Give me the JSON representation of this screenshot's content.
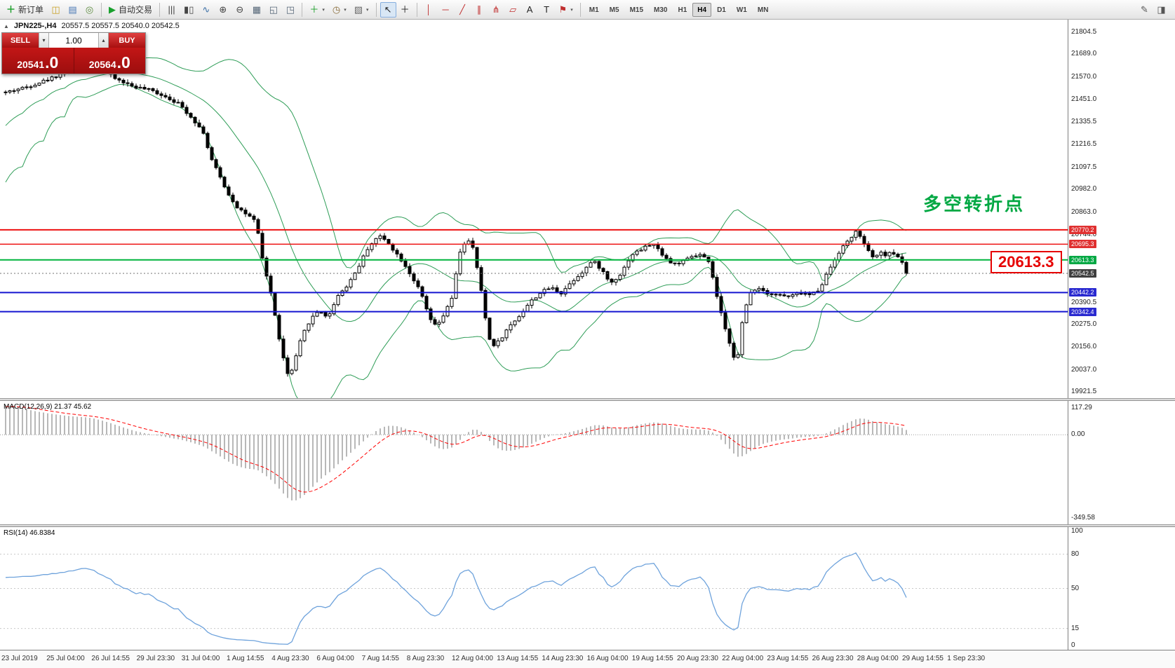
{
  "toolbar": {
    "new_order": "新订单",
    "auto_trading": "自动交易",
    "left_icons": [
      {
        "name": "market-watch-icon",
        "glyph": "◫",
        "color": "#c9a227"
      },
      {
        "name": "data-window-icon",
        "glyph": "▤",
        "color": "#4a78b5"
      },
      {
        "name": "navigator-icon",
        "glyph": "◎",
        "color": "#5b8a3c"
      }
    ],
    "chart_icons": [
      {
        "name": "bar-chart-icon",
        "glyph": "|||",
        "color": "#444444"
      },
      {
        "name": "candlestick-chart-icon",
        "glyph": "▮▯",
        "color": "#444444"
      },
      {
        "name": "line-chart-icon",
        "glyph": "∿",
        "color": "#3a6ea5"
      },
      {
        "name": "zoom-in-icon",
        "glyph": "⊕",
        "color": "#444444"
      },
      {
        "name": "zoom-out-icon",
        "glyph": "⊖",
        "color": "#444444"
      },
      {
        "name": "tile-windows-icon",
        "glyph": "▦",
        "color": "#556677"
      },
      {
        "name": "cascade-windows-icon",
        "glyph": "◱",
        "color": "#556677"
      },
      {
        "name": "arrange-windows-icon",
        "glyph": "◳",
        "color": "#556677"
      }
    ],
    "insert_icons": [
      {
        "name": "add-indicator-icon",
        "glyph": "＋",
        "color": "#1a9f29",
        "caret": true
      },
      {
        "name": "periods-icon",
        "glyph": "◷",
        "color": "#8a6d3b",
        "caret": true
      },
      {
        "name": "template-icon",
        "glyph": "▧",
        "color": "#666666",
        "caret": true
      }
    ],
    "tool_icons": [
      {
        "name": "cursor-icon",
        "glyph": "↖",
        "color": "#222222",
        "active": true
      },
      {
        "name": "crosshair-icon",
        "glyph": "＋",
        "color": "#222222"
      }
    ],
    "draw_icons": [
      {
        "name": "vertical-line-icon",
        "glyph": "│",
        "color": "#c03030"
      },
      {
        "name": "horizontal-line-icon",
        "glyph": "─",
        "color": "#c03030"
      },
      {
        "name": "trendline-icon",
        "glyph": "╱",
        "color": "#c03030"
      },
      {
        "name": "equidistant-channel-icon",
        "glyph": "∥",
        "color": "#c03030"
      },
      {
        "name": "andrews-pitchfork-icon",
        "glyph": "⋔",
        "color": "#c03030"
      },
      {
        "name": "fibonacci-icon",
        "glyph": "▱",
        "color": "#c03030"
      },
      {
        "name": "text-icon",
        "glyph": "A",
        "color": "#222222"
      },
      {
        "name": "text-label-icon",
        "glyph": "T",
        "color": "#222222"
      },
      {
        "name": "arrows-icon",
        "glyph": "⚑",
        "color": "#c03030",
        "caret": true
      }
    ],
    "timeframes": [
      "M1",
      "M5",
      "M15",
      "M30",
      "H1",
      "H4",
      "D1",
      "W1",
      "MN"
    ],
    "active_timeframe": "H4",
    "right_icons": [
      {
        "name": "quick-edit-icon",
        "glyph": "✎",
        "color": "#555555"
      },
      {
        "name": "docking-icon",
        "glyph": "◨",
        "color": "#555555"
      }
    ]
  },
  "chart": {
    "collapse_marker": "▲",
    "symbol_period": "JPN225-,H4",
    "ohlc": "20557.5 20557.5 20540.0 20542.5",
    "annotation": {
      "text": "多空转折点",
      "color": "#00a843"
    },
    "callout": {
      "text": "20613.3",
      "color": "#e60000"
    }
  },
  "trade_panel": {
    "sell_label": "SELL",
    "buy_label": "BUY",
    "lot": "1.00",
    "sell_price_int": "20541",
    "sell_price_frac": ".0",
    "buy_price_int": "20564",
    "buy_price_frac": ".0"
  },
  "price_axis": {
    "ticks": [
      "21804.5",
      "21689.0",
      "21570.0",
      "21451.0",
      "21335.5",
      "21216.5",
      "21097.5",
      "20982.0",
      "20863.0",
      "20744.0",
      "20390.5",
      "20275.0",
      "20156.0",
      "20037.0",
      "19921.5"
    ],
    "markers": [
      {
        "value": "20770.2",
        "bg": "#e03030"
      },
      {
        "value": "20695.3",
        "bg": "#e03030"
      },
      {
        "value": "20613.3",
        "bg": "#00a843"
      },
      {
        "value": "20542.5",
        "bg": "#3f3f3f"
      },
      {
        "value": "20442.2",
        "bg": "#2a2ad0"
      },
      {
        "value": "20342.4",
        "bg": "#2a2ad0"
      }
    ]
  },
  "macd_panel": {
    "label": "MACD(12,26,9) 21.37 45.62",
    "max": "117.29",
    "zero": "0.00",
    "min": "-349.58"
  },
  "rsi_panel": {
    "label": "RSI(14) 46.8384",
    "levels": [
      "100",
      "80",
      "50",
      "15",
      "0"
    ],
    "level_lines": [
      80,
      50,
      15
    ],
    "current": 46.8384
  },
  "time_axis": [
    "23 Jul 2019",
    "25 Jul 04:00",
    "26 Jul 14:55",
    "29 Jul 23:30",
    "31 Jul 04:00",
    "1 Aug 14:55",
    "4 Aug 23:30",
    "6 Aug 04:00",
    "7 Aug 14:55",
    "8 Aug 23:30",
    "12 Aug 04:00",
    "13 Aug 14:55",
    "14 Aug 23:30",
    "16 Aug 04:00",
    "19 Aug 14:55",
    "20 Aug 23:30",
    "22 Aug 04:00",
    "23 Aug 14:55",
    "26 Aug 23:30",
    "28 Aug 04:00",
    "29 Aug 14:55",
    "1 Sep 23:30"
  ],
  "chart_data": {
    "type": "candlestick",
    "symbol": "JPN225",
    "timeframe": "H4",
    "price_range": [
      19890,
      21870
    ],
    "candle_count": 215,
    "close_anchors": [
      [
        8,
        21490
      ],
      [
        40,
        21520
      ],
      [
        70,
        21560
      ],
      [
        100,
        21605
      ],
      [
        125,
        21645
      ],
      [
        145,
        21610
      ],
      [
        165,
        21560
      ],
      [
        190,
        21520
      ],
      [
        215,
        21500
      ],
      [
        235,
        21470
      ],
      [
        255,
        21430
      ],
      [
        275,
        21350
      ],
      [
        290,
        21280
      ],
      [
        300,
        21150
      ],
      [
        312,
        21060
      ],
      [
        325,
        20960
      ],
      [
        338,
        20890
      ],
      [
        352,
        20850
      ],
      [
        365,
        20810
      ],
      [
        375,
        20600
      ],
      [
        385,
        20460
      ],
      [
        395,
        20260
      ],
      [
        403,
        20110
      ],
      [
        412,
        19990
      ],
      [
        420,
        20080
      ],
      [
        430,
        20210
      ],
      [
        442,
        20300
      ],
      [
        455,
        20350
      ],
      [
        468,
        20310
      ],
      [
        480,
        20420
      ],
      [
        495,
        20480
      ],
      [
        510,
        20570
      ],
      [
        525,
        20680
      ],
      [
        540,
        20740
      ],
      [
        552,
        20710
      ],
      [
        562,
        20660
      ],
      [
        575,
        20600
      ],
      [
        588,
        20520
      ],
      [
        600,
        20440
      ],
      [
        612,
        20310
      ],
      [
        622,
        20260
      ],
      [
        635,
        20340
      ],
      [
        645,
        20420
      ],
      [
        655,
        20650
      ],
      [
        665,
        20720
      ],
      [
        673,
        20690
      ],
      [
        682,
        20540
      ],
      [
        692,
        20310
      ],
      [
        700,
        20160
      ],
      [
        712,
        20190
      ],
      [
        725,
        20260
      ],
      [
        740,
        20320
      ],
      [
        755,
        20390
      ],
      [
        770,
        20440
      ],
      [
        785,
        20470
      ],
      [
        800,
        20440
      ],
      [
        815,
        20500
      ],
      [
        830,
        20550
      ],
      [
        845,
        20610
      ],
      [
        858,
        20560
      ],
      [
        870,
        20490
      ],
      [
        885,
        20540
      ],
      [
        900,
        20640
      ],
      [
        915,
        20670
      ],
      [
        930,
        20700
      ],
      [
        945,
        20640
      ],
      [
        958,
        20590
      ],
      [
        972,
        20600
      ],
      [
        986,
        20630
      ],
      [
        1000,
        20640
      ],
      [
        1012,
        20590
      ],
      [
        1022,
        20420
      ],
      [
        1032,
        20270
      ],
      [
        1042,
        20160
      ],
      [
        1050,
        20060
      ],
      [
        1058,
        20280
      ],
      [
        1068,
        20440
      ],
      [
        1080,
        20470
      ],
      [
        1095,
        20440
      ],
      [
        1110,
        20430
      ],
      [
        1125,
        20420
      ],
      [
        1140,
        20440
      ],
      [
        1155,
        20430
      ],
      [
        1168,
        20460
      ],
      [
        1180,
        20550
      ],
      [
        1195,
        20650
      ],
      [
        1208,
        20710
      ],
      [
        1220,
        20760
      ],
      [
        1232,
        20700
      ],
      [
        1243,
        20620
      ],
      [
        1253,
        20650
      ],
      [
        1263,
        20640
      ],
      [
        1273,
        20650
      ],
      [
        1283,
        20620
      ],
      [
        1292,
        20570
      ],
      [
        1300,
        20542.5
      ]
    ],
    "last_close": 20542.5,
    "levels": [
      {
        "price": 20770.2,
        "color": "#ee1111",
        "width": 2
      },
      {
        "price": 20695.3,
        "color": "#ee1111",
        "width": 1.5
      },
      {
        "price": 20613.3,
        "color": "#00b43c",
        "width": 2
      },
      {
        "price": 20542.5,
        "color": "#707070",
        "width": 1,
        "dotted": true
      },
      {
        "price": 20442.2,
        "color": "#1515d0",
        "width": 2
      },
      {
        "price": 20342.4,
        "color": "#1515d0",
        "width": 2
      }
    ],
    "indicators": {
      "bollinger": {
        "period": 20,
        "deviation": 2
      },
      "macd": [
        12,
        26,
        9
      ],
      "rsi": 14
    },
    "macd_axis": {
      "max": 117.29,
      "min": -349.58
    },
    "colors": {
      "bollinger": "#2e9d57",
      "candle_up": "#ffffff",
      "candle_down": "#000000",
      "wick": "#000000",
      "macd_hist": "#b8b8b8",
      "macd_signal": "#ff0000",
      "rsi_line": "#6fa3dc"
    }
  }
}
